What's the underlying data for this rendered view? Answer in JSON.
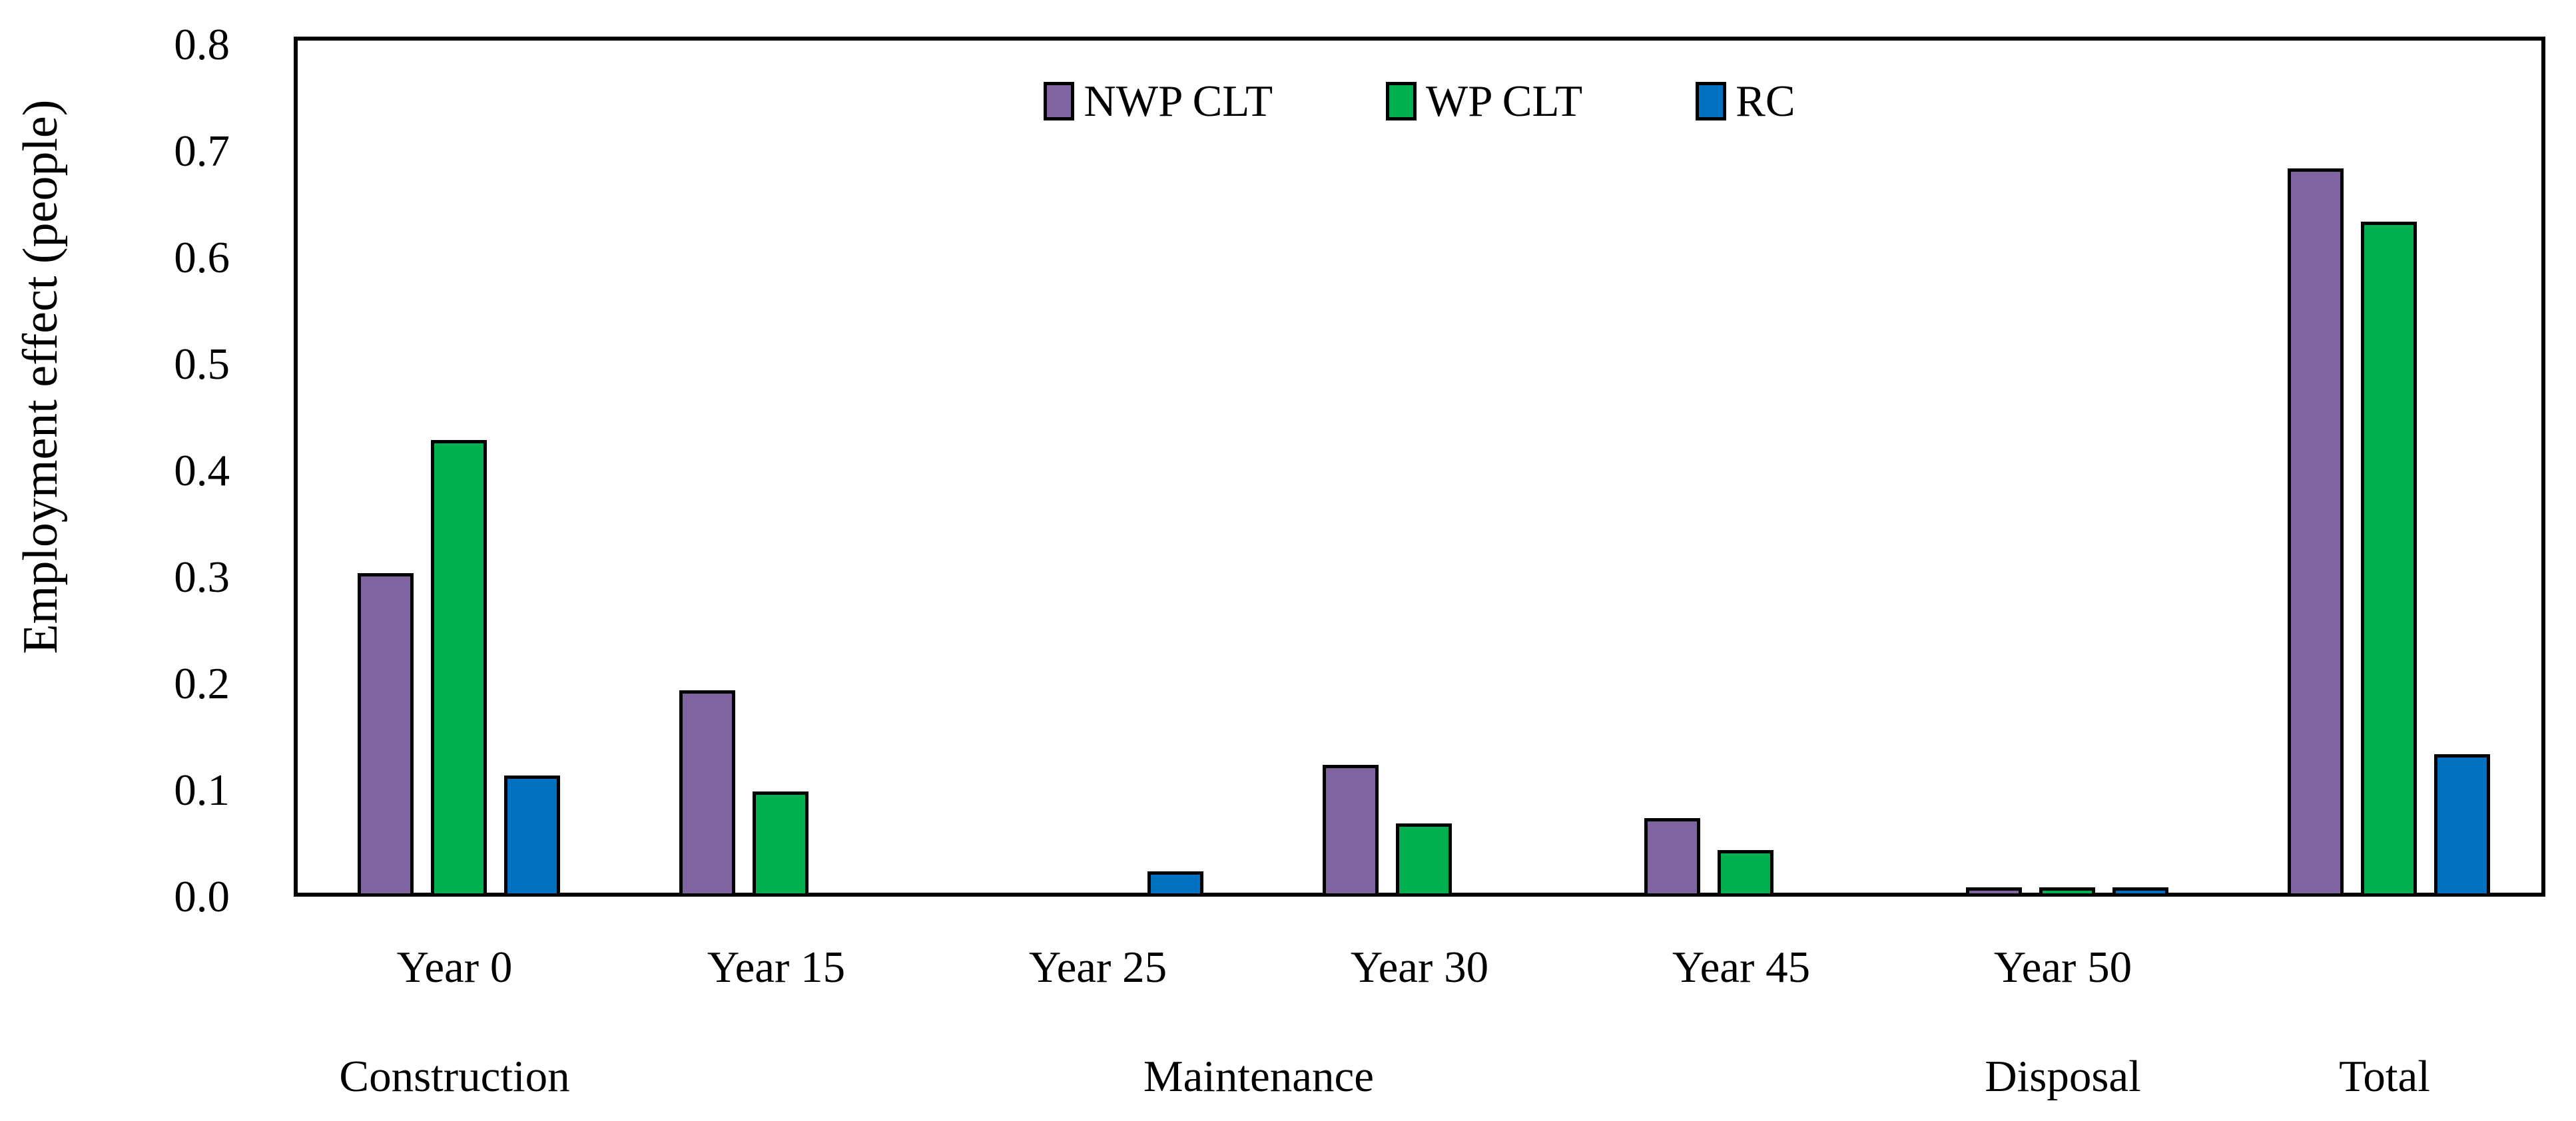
{
  "figure": {
    "background": "#ffffff",
    "text_color": "#000000"
  },
  "y_axis": {
    "label": "Employment effect (people)"
  },
  "chart_data": {
    "type": "bar",
    "title": "",
    "xlabel": "",
    "ylabel": "Employment effect (people)",
    "ylim": [
      0,
      0.8
    ],
    "ytick_step": 0.1,
    "yticks": [
      "0.0",
      "0.1",
      "0.2",
      "0.3",
      "0.4",
      "0.5",
      "0.6",
      "0.7",
      "0.8"
    ],
    "grid": false,
    "legend_position": "top-center-inside",
    "categories": [
      "Year 0",
      "Year 15",
      "Year 25",
      "Year 30",
      "Year 45",
      "Year 50",
      ""
    ],
    "stage_labels": [
      {
        "label": "Construction",
        "span": [
          0,
          0
        ]
      },
      {
        "label": "Maintenance",
        "span": [
          1,
          4
        ]
      },
      {
        "label": "Disposal",
        "span": [
          5,
          5
        ]
      },
      {
        "label": "Total",
        "span": [
          6,
          6
        ]
      }
    ],
    "series": [
      {
        "name": "NWP CLT",
        "color": "#8064A2",
        "values": [
          0.3,
          0.19,
          0,
          0.12,
          0.07,
          0.005,
          0.68
        ]
      },
      {
        "name": "WP CLT",
        "color": "#00B050",
        "values": [
          0.425,
          0.095,
          0,
          0.065,
          0.04,
          0.005,
          0.63
        ]
      },
      {
        "name": "RC",
        "color": "#0070C0",
        "values": [
          0.11,
          0,
          0.02,
          0,
          0,
          0.005,
          0.13
        ]
      }
    ]
  }
}
